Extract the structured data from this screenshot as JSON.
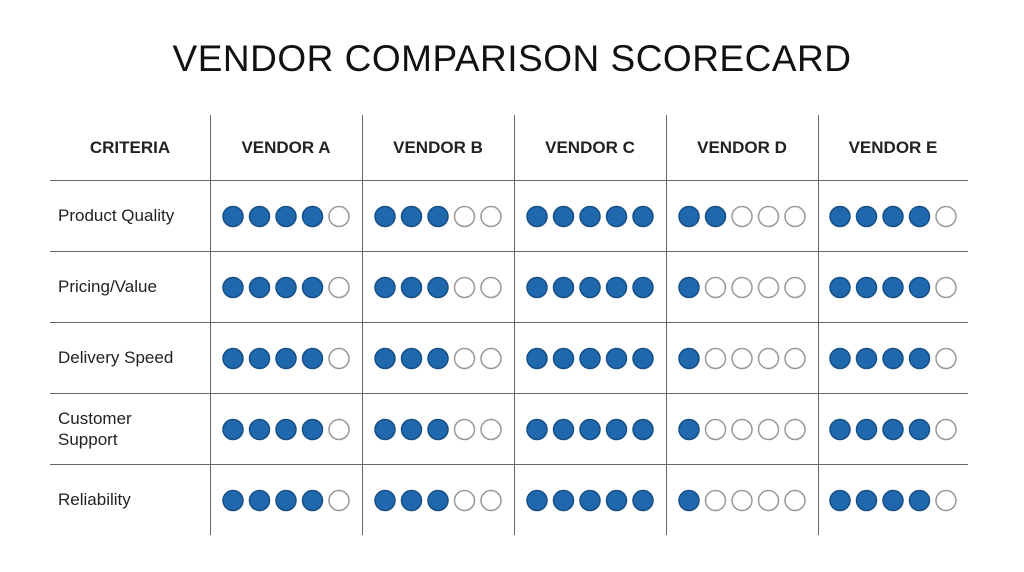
{
  "title": "VENDOR COMPARISON SCORECARD",
  "table": {
    "header": [
      "CRITERIA",
      "VENDOR A",
      "VENDOR B",
      "VENDOR C",
      "VENDOR D",
      "VENDOR E"
    ],
    "max_score": 5,
    "rows": [
      {
        "criterion": "Product Quality",
        "scores": [
          4,
          3,
          5,
          2,
          4
        ]
      },
      {
        "criterion": "Pricing/Value",
        "scores": [
          4,
          3,
          5,
          1,
          4
        ]
      },
      {
        "criterion": "Delivery Speed",
        "scores": [
          4,
          3,
          5,
          1,
          4
        ]
      },
      {
        "criterion": "Customer Support",
        "scores": [
          4,
          3,
          5,
          1,
          4
        ]
      },
      {
        "criterion": "Reliability",
        "scores": [
          4,
          3,
          5,
          1,
          4
        ]
      }
    ]
  }
}
